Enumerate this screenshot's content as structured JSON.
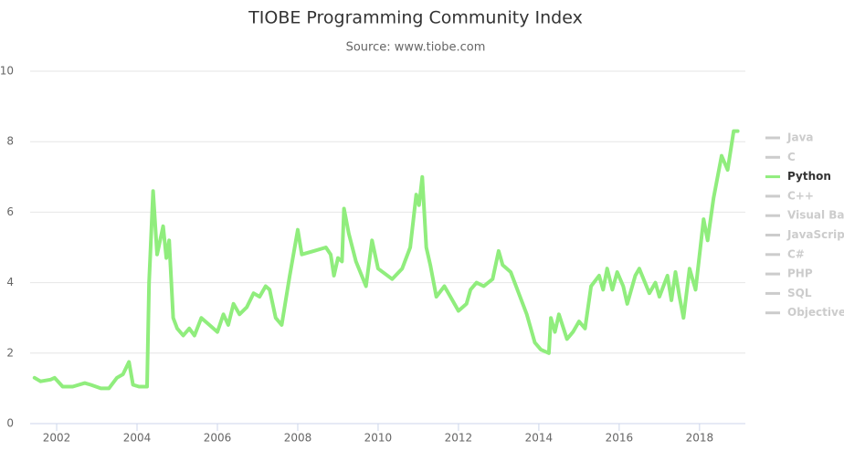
{
  "chart_data": {
    "type": "line",
    "title": "TIOBE Programming Community Index",
    "subtitle": "Source: www.tiobe.com",
    "xlim": [
      2001.34,
      2019.14
    ],
    "xticks": [
      2002,
      2004,
      2006,
      2008,
      2010,
      2012,
      2014,
      2016,
      2018
    ],
    "ylim": [
      0,
      10
    ],
    "yticks": [
      0,
      2,
      4,
      6,
      8,
      10
    ],
    "grid": true,
    "legend": "right",
    "x": [
      2001.45,
      2001.6,
      2001.85,
      2001.95,
      2002.15,
      2002.4,
      2002.7,
      2002.85,
      2003.1,
      2003.3,
      2003.5,
      2003.65,
      2003.8,
      2003.9,
      2004.05,
      2004.25,
      2004.3,
      2004.4,
      2004.5,
      2004.65,
      2004.73,
      2004.8,
      2004.9,
      2005.0,
      2005.15,
      2005.3,
      2005.43,
      2005.6,
      2005.8,
      2006.0,
      2006.15,
      2006.27,
      2006.4,
      2006.55,
      2006.73,
      2006.9,
      2007.05,
      2007.2,
      2007.3,
      2007.45,
      2007.6,
      2007.8,
      2008.0,
      2008.1,
      2008.4,
      2008.7,
      2008.82,
      2008.9,
      2009.0,
      2009.1,
      2009.15,
      2009.27,
      2009.45,
      2009.7,
      2009.85,
      2010.0,
      2010.35,
      2010.6,
      2010.8,
      2010.95,
      2011.02,
      2011.1,
      2011.2,
      2011.3,
      2011.45,
      2011.65,
      2011.8,
      2012.0,
      2012.2,
      2012.3,
      2012.45,
      2012.63,
      2012.85,
      2013.0,
      2013.1,
      2013.3,
      2013.5,
      2013.7,
      2013.9,
      2014.05,
      2014.25,
      2014.3,
      2014.4,
      2014.5,
      2014.7,
      2014.85,
      2015.0,
      2015.15,
      2015.3,
      2015.5,
      2015.6,
      2015.7,
      2015.83,
      2015.95,
      2016.1,
      2016.2,
      2016.4,
      2016.5,
      2016.75,
      2016.9,
      2017.0,
      2017.2,
      2017.3,
      2017.4,
      2017.5,
      2017.6,
      2017.75,
      2017.9,
      2018.1,
      2018.2,
      2018.35,
      2018.55,
      2018.7,
      2018.85,
      2018.95
    ],
    "series": [
      {
        "name": "Java",
        "color": "#cccccc",
        "visible": false
      },
      {
        "name": "C",
        "color": "#cccccc",
        "visible": false
      },
      {
        "name": "Python",
        "color": "#90ed7d",
        "visible": true,
        "values": [
          1.3,
          1.2,
          1.25,
          1.3,
          1.05,
          1.05,
          1.15,
          1.1,
          1.0,
          1.0,
          1.3,
          1.4,
          1.75,
          1.1,
          1.05,
          1.05,
          4.0,
          6.6,
          4.8,
          5.6,
          4.7,
          5.2,
          3.0,
          2.7,
          2.5,
          2.7,
          2.5,
          3.0,
          2.8,
          2.6,
          3.1,
          2.8,
          3.4,
          3.1,
          3.3,
          3.7,
          3.6,
          3.9,
          3.8,
          3.0,
          2.8,
          4.2,
          5.5,
          4.8,
          4.9,
          5.0,
          4.8,
          4.2,
          4.7,
          4.6,
          6.1,
          5.4,
          4.6,
          3.9,
          5.2,
          4.4,
          4.1,
          4.4,
          5.0,
          6.5,
          6.2,
          7.0,
          5.0,
          4.5,
          3.6,
          3.9,
          3.6,
          3.2,
          3.4,
          3.8,
          4.0,
          3.9,
          4.1,
          4.9,
          4.5,
          4.3,
          3.7,
          3.1,
          2.3,
          2.1,
          2.0,
          3.0,
          2.6,
          3.1,
          2.4,
          2.6,
          2.9,
          2.7,
          3.9,
          4.2,
          3.8,
          4.4,
          3.8,
          4.3,
          3.9,
          3.4,
          4.2,
          4.4,
          3.7,
          4.0,
          3.6,
          4.2,
          3.5,
          4.3,
          3.6,
          3.0,
          4.4,
          3.8,
          5.8,
          5.2,
          6.4,
          7.6,
          7.2,
          8.3,
          8.3
        ]
      },
      {
        "name": "C++",
        "color": "#cccccc",
        "visible": false
      },
      {
        "name": "Visual Ba",
        "color": "#cccccc",
        "visible": false
      },
      {
        "name": "JavaScript",
        "color": "#cccccc",
        "visible": false
      },
      {
        "name": "C#",
        "color": "#cccccc",
        "visible": false
      },
      {
        "name": "PHP",
        "color": "#cccccc",
        "visible": false
      },
      {
        "name": "SQL",
        "color": "#cccccc",
        "visible": false
      },
      {
        "name": "Objective",
        "color": "#cccccc",
        "visible": false
      }
    ]
  }
}
